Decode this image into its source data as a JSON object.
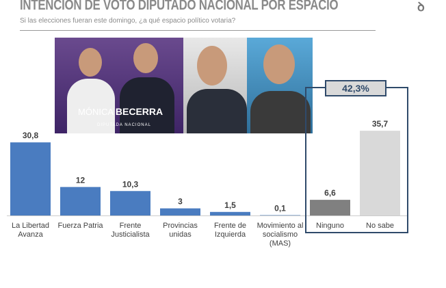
{
  "header": {
    "title": "INTENCIÓN DE VOTO DIPUTADO NACIONAL POR ESPACIO",
    "subtitle": "Si las elecciones fueran este domingo, ¿a qué espacio político votaria?"
  },
  "photo_caption": {
    "first": "MÓNICA ",
    "last": "BECERRA",
    "role": "DIPUTADA NACIONAL"
  },
  "chart_data": {
    "type": "bar",
    "title": "INTENCIÓN DE VOTO DIPUTADO NACIONAL POR ESPACIO",
    "categories": [
      [
        "La Libertad",
        "Avanza"
      ],
      [
        "Fuerza Patria"
      ],
      [
        "Frente",
        "Justicialista"
      ],
      [
        "Provincias",
        "unidas"
      ],
      [
        "Frente de",
        "Izquierda"
      ],
      [
        "Movimiento al",
        "socialismo",
        "(MAS)"
      ],
      [
        "Ninguno"
      ],
      [
        "No sabe"
      ]
    ],
    "values": [
      30.8,
      12,
      10.3,
      3,
      1.5,
      0.1,
      6.6,
      35.7
    ],
    "value_labels": [
      "30,8",
      "12",
      "10,3",
      "3",
      "1,5",
      "0,1",
      "6,6",
      "35,7"
    ],
    "colors": [
      "#4a7cc0",
      "#4a7cc0",
      "#4a7cc0",
      "#4a7cc0",
      "#4a7cc0",
      "#4a7cc0",
      "#808080",
      "#d9d9d9"
    ],
    "annotation": "42,3%",
    "ylim": [
      0,
      40
    ]
  }
}
